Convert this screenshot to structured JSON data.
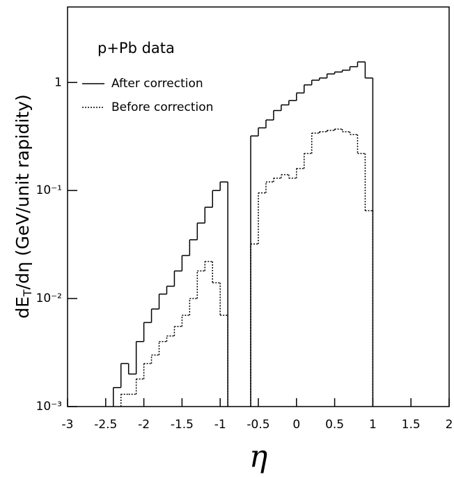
{
  "chart_data": {
    "type": "histogram",
    "annotation": "p+Pb data",
    "x_label": "η",
    "y_label": [
      "dE",
      "T",
      "/dη (GeV/unit rapidity)"
    ],
    "y_log": true,
    "legend": "upper left",
    "bins": [
      -2.4,
      -2.3,
      -2.2,
      -2.1,
      -2.0,
      -1.9,
      -1.8,
      -1.7,
      -1.6,
      -1.5,
      -1.4,
      -1.3,
      -1.2,
      -1.1,
      -1.0,
      -0.9,
      -0.8,
      -0.7,
      -0.6,
      -0.5,
      -0.4,
      -0.3,
      -0.2,
      -0.1,
      0.0,
      0.1,
      0.2,
      0.3,
      0.4,
      0.5,
      0.6,
      0.7,
      0.8,
      0.9,
      1.0
    ],
    "series": [
      {
        "name": "After correction",
        "color": "#000000",
        "dash": "none",
        "values": [
          0.0015,
          0.0025,
          0.002,
          0.004,
          0.006,
          0.008,
          0.011,
          0.013,
          0.018,
          0.025,
          0.035,
          0.05,
          0.07,
          0.1,
          0.12,
          null,
          null,
          null,
          0.32,
          0.38,
          0.45,
          0.55,
          0.62,
          0.68,
          0.8,
          0.95,
          1.05,
          1.1,
          1.2,
          1.25,
          1.3,
          1.4,
          1.55,
          1.1
        ]
      },
      {
        "name": "Before correction",
        "color": "#000000",
        "dash": "2,2",
        "values": [
          null,
          0.0013,
          0.0013,
          0.0018,
          0.0025,
          0.003,
          0.004,
          0.0045,
          0.0055,
          0.007,
          0.01,
          0.018,
          0.022,
          0.014,
          0.007,
          null,
          null,
          null,
          0.032,
          0.095,
          0.12,
          0.13,
          0.14,
          0.13,
          0.16,
          0.22,
          0.34,
          0.35,
          0.36,
          0.37,
          0.35,
          0.33,
          0.22,
          0.065
        ]
      }
    ],
    "xlim": [
      -3,
      2
    ],
    "xticks": [
      -3,
      -2.5,
      -2,
      -1.5,
      -1,
      -0.5,
      0,
      0.5,
      1,
      1.5,
      2
    ],
    "ylim": [
      0.001,
      5
    ],
    "yticks": [
      {
        "value": 0.001,
        "label": "10⁻³"
      },
      {
        "value": 0.01,
        "label": "10⁻²"
      },
      {
        "value": 0.1,
        "label": "10⁻¹"
      },
      1
    ]
  }
}
